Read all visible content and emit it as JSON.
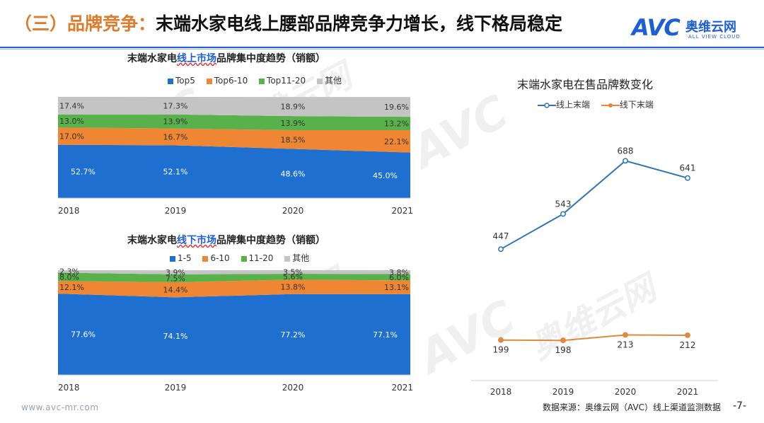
{
  "header": {
    "title_prefix": "（三）品牌竞争：",
    "title_main": "末端水家电线上腰部品牌竞争力增长，线下格局稳定",
    "logo_mark": "AVC",
    "logo_cn": "奥维云网",
    "logo_en": "ALL VIEW CLOUD"
  },
  "watermark": {
    "mark": "AVC",
    "cn": "奥维云网",
    "en": "ALL VIEW CLOUD"
  },
  "footer": {
    "url": "www.avc-mr.com",
    "source": "数据来源：奥维云网（AVC）线上渠道监测数据",
    "page": "-7-"
  },
  "chart_data": [
    {
      "type": "area",
      "stacked": true,
      "percent": true,
      "title_pre": "末端水家电",
      "title_hl": "线上市场",
      "title_post": "品牌集中度趋势（销额）",
      "categories": [
        "2018",
        "2019",
        "2020",
        "2021"
      ],
      "series": [
        {
          "name": "Top5",
          "color": "#1f6fd0",
          "values": [
            52.7,
            52.1,
            48.6,
            45.0
          ],
          "labels": [
            "52.7%",
            "52.1%",
            "48.6%",
            "45.0%"
          ]
        },
        {
          "name": "Top6-10",
          "color": "#ef8633",
          "values": [
            17.0,
            16.7,
            18.5,
            22.1
          ],
          "labels": [
            "17.0%",
            "16.7%",
            "18.5%",
            "22.1%"
          ]
        },
        {
          "name": "Top11-20",
          "color": "#58b14a",
          "values": [
            13.0,
            13.9,
            13.9,
            13.2
          ],
          "labels": [
            "13.0%",
            "13.9%",
            "13.9%",
            "13.2%"
          ]
        },
        {
          "name": "其他",
          "color": "#c4c4c4",
          "values": [
            17.4,
            17.3,
            18.9,
            19.6
          ],
          "labels": [
            "17.4%",
            "17.3%",
            "18.9%",
            "19.6%"
          ]
        }
      ],
      "ylim": [
        0,
        100
      ]
    },
    {
      "type": "area",
      "stacked": true,
      "percent": true,
      "title_pre": "末端水家电",
      "title_hl": "线下市场",
      "title_post": "品牌集中度趋势（销额）",
      "categories": [
        "2018",
        "2019",
        "2020",
        "2021"
      ],
      "series": [
        {
          "name": "1-5",
          "color": "#1f6fd0",
          "values": [
            77.6,
            74.1,
            77.2,
            77.1
          ],
          "labels": [
            "77.6%",
            "74.1%",
            "77.2%",
            "77.1%"
          ]
        },
        {
          "name": "6-10",
          "color": "#ef8633",
          "values": [
            12.1,
            14.4,
            13.8,
            13.1
          ],
          "labels": [
            "12.1%",
            "14.4%",
            "13.8%",
            "13.1%"
          ]
        },
        {
          "name": "11-20",
          "color": "#58b14a",
          "values": [
            8.0,
            7.5,
            5.6,
            6.0
          ],
          "labels": [
            "8.0%",
            "7.5%",
            "5.6%",
            "6.0%"
          ]
        },
        {
          "name": "其他",
          "color": "#c4c4c4",
          "values": [
            2.3,
            3.9,
            3.5,
            3.8
          ],
          "labels": [
            "2.3%",
            "3.9%",
            "3.5%",
            "3.8%"
          ]
        }
      ],
      "ylim": [
        0,
        100
      ]
    },
    {
      "type": "line",
      "title": "末端水家电在售品牌数变化",
      "categories": [
        "2018",
        "2019",
        "2020",
        "2021"
      ],
      "series": [
        {
          "name": "线上末端",
          "color": "#2e75b6",
          "values": [
            447,
            543,
            688,
            641
          ]
        },
        {
          "name": "线下末端",
          "color": "#e08a3c",
          "values": [
            199,
            198,
            213,
            212
          ]
        }
      ],
      "ylim": [
        100,
        760
      ],
      "grid": false
    }
  ]
}
